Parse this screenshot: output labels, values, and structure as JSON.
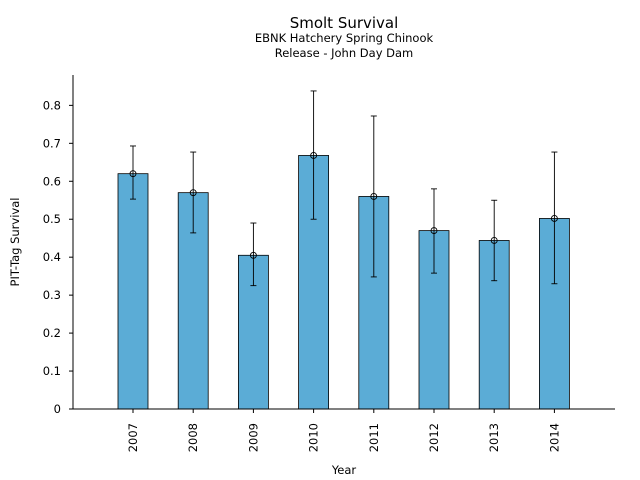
{
  "chart_data": {
    "type": "bar",
    "title": "Smolt Survival",
    "subtitle_lines": [
      "EBNK Hatchery Spring Chinook",
      "Release - John Day Dam"
    ],
    "xlabel": "Year",
    "ylabel": "PIT-Tag Survival",
    "categories": [
      "2007",
      "2008",
      "2009",
      "2010",
      "2011",
      "2012",
      "2013",
      "2014"
    ],
    "values": [
      0.62,
      0.57,
      0.405,
      0.668,
      0.56,
      0.47,
      0.444,
      0.502
    ],
    "error_low": [
      0.553,
      0.464,
      0.325,
      0.5,
      0.348,
      0.358,
      0.338,
      0.33
    ],
    "error_high": [
      0.693,
      0.677,
      0.49,
      0.838,
      0.772,
      0.58,
      0.55,
      0.677
    ],
    "ylim": [
      0,
      0.88
    ],
    "yticks": [
      "0",
      "0.1",
      "0.2",
      "0.3",
      "0.4",
      "0.5",
      "0.6",
      "0.7",
      "0.8"
    ],
    "bar_color": "#5bacd6",
    "grid": false
  }
}
